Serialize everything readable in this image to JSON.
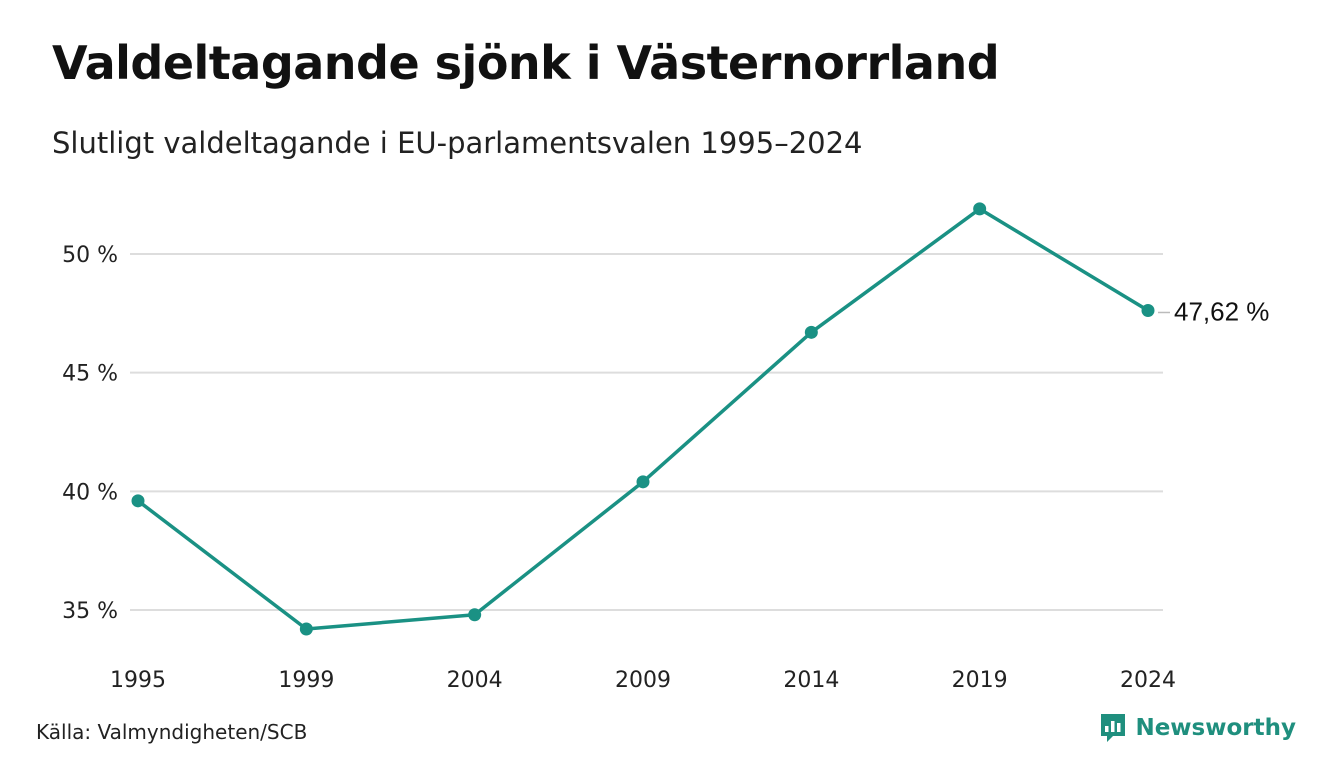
{
  "title": "Valdeltagande sjönk i Västernorrland",
  "subtitle": "Slutligt valdeltagande i EU-parlamentsvalen 1995–2024",
  "source": "Källa: Valmyndigheten/SCB",
  "brand": {
    "name": "Newsworthy",
    "color": "#1f8f7e",
    "icon": "newsworthy-logo-icon"
  },
  "chart_data": {
    "type": "line",
    "title": "Valdeltagande sjönk i Västernorrland",
    "subtitle": "Slutligt valdeltagande i EU-parlamentsvalen 1995–2024",
    "xlabel": "",
    "ylabel": "",
    "categories": [
      "1995",
      "1999",
      "2004",
      "2009",
      "2014",
      "2019",
      "2024"
    ],
    "series": [
      {
        "values": [
          39.6,
          34.2,
          34.8,
          40.4,
          46.7,
          51.9,
          47.62
        ],
        "color": "#1a9184"
      }
    ],
    "ylim": [
      33.5,
      52.5
    ],
    "yticks": [
      35,
      40,
      45,
      50
    ],
    "ytick_labels": [
      "35 %",
      "40 %",
      "45 %",
      "50 %"
    ],
    "end_label": "47,62 %",
    "grid": true,
    "gridline_color": "#dddddd",
    "legend": "none"
  }
}
